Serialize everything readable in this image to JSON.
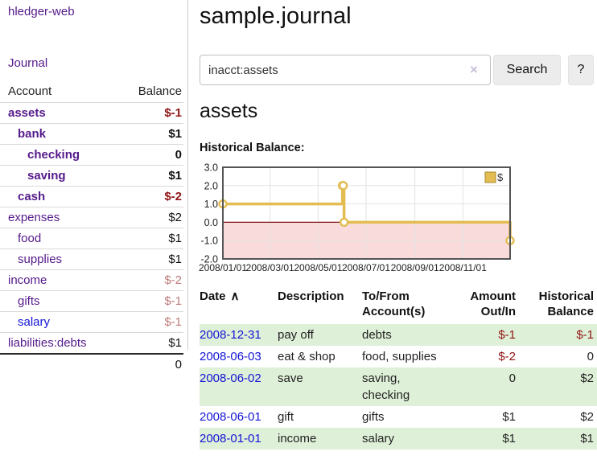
{
  "app": {
    "brand": "hledger-web",
    "nav": {
      "journal": "Journal"
    }
  },
  "sidebar": {
    "columns": {
      "account": "Account",
      "balance": "Balance"
    },
    "accounts": [
      {
        "name": "assets",
        "indent": 1,
        "bold": true,
        "balance": "$-1",
        "balance_tone": "negative-strong",
        "link_state": "visited"
      },
      {
        "name": "bank",
        "indent": 2,
        "bold": true,
        "balance": "$1",
        "balance_tone": "normal",
        "link_state": "visited"
      },
      {
        "name": "checking",
        "indent": 3,
        "bold": true,
        "balance": "0",
        "balance_tone": "normal",
        "link_state": "visited"
      },
      {
        "name": "saving",
        "indent": 3,
        "bold": true,
        "balance": "$1",
        "balance_tone": "normal",
        "link_state": "visited"
      },
      {
        "name": "cash",
        "indent": 2,
        "bold": true,
        "balance": "$-2",
        "balance_tone": "negative-strong",
        "link_state": "visited"
      },
      {
        "name": "expenses",
        "indent": 1,
        "bold": false,
        "balance": "$2",
        "balance_tone": "normal",
        "link_state": "visited"
      },
      {
        "name": "food",
        "indent": 2,
        "bold": false,
        "balance": "$1",
        "balance_tone": "normal",
        "link_state": "visited"
      },
      {
        "name": "supplies",
        "indent": 2,
        "bold": false,
        "balance": "$1",
        "balance_tone": "normal",
        "link_state": "visited"
      },
      {
        "name": "income",
        "indent": 1,
        "bold": false,
        "balance": "$-2",
        "balance_tone": "negative-muted",
        "link_state": "visited"
      },
      {
        "name": "gifts",
        "indent": 2,
        "bold": false,
        "balance": "$-1",
        "balance_tone": "negative-muted",
        "link_state": "visited"
      },
      {
        "name": "salary",
        "indent": 2,
        "bold": false,
        "balance": "$-1",
        "balance_tone": "negative-muted",
        "link_state": "unvisited"
      },
      {
        "name": "liabilities:debts",
        "indent": 1,
        "bold": false,
        "balance": "$1",
        "balance_tone": "normal",
        "link_state": "visited"
      }
    ],
    "total": "0"
  },
  "page": {
    "title": "sample.journal"
  },
  "search": {
    "value": "inacct:assets",
    "clear_icon": "×",
    "button_label": "Search",
    "help_label": "?"
  },
  "account_view": {
    "heading": "assets",
    "chart_title": "Historical Balance:"
  },
  "chart_data": {
    "type": "line",
    "style": "step-after",
    "title": "Historical Balance",
    "legend": [
      {
        "label": "$",
        "position": "top-right"
      }
    ],
    "x_range": [
      "2008-01-01",
      "2008-12-31"
    ],
    "ylim": [
      -2.0,
      3.0
    ],
    "yticks": [
      "3.0",
      "2.0",
      "1.0",
      "0.0",
      "-1.0",
      "-2.0"
    ],
    "xticks": [
      {
        "label": "2008/01/01",
        "date": "2008-01-01"
      },
      {
        "label": "2008/03/01",
        "date": "2008-03-01"
      },
      {
        "label": "2008/05/01",
        "date": "2008-05-01"
      },
      {
        "label": "2008/07/01",
        "date": "2008-07-01"
      },
      {
        "label": "2008/09/01",
        "date": "2008-09-01"
      },
      {
        "label": "2008/11/01",
        "date": "2008-11-01"
      }
    ],
    "series": [
      {
        "name": "$",
        "points": [
          {
            "date": "2008-01-01",
            "value": 1
          },
          {
            "date": "2008-06-01",
            "value": 2
          },
          {
            "date": "2008-06-02",
            "value": 2
          },
          {
            "date": "2008-06-03",
            "value": 0
          },
          {
            "date": "2008-12-31",
            "value": -1
          }
        ]
      }
    ],
    "grid": true,
    "negative_region_shaded": true
  },
  "register": {
    "columns": [
      "Date",
      "Description",
      "To/From\nAccount(s)",
      "Amount\nOut/In",
      "Historical\nBalance"
    ],
    "sort_indicator": "∧",
    "rows": [
      {
        "date": "2008-12-31",
        "description": "pay off",
        "accounts": [
          "debts"
        ],
        "amount": "$-1",
        "amount_negative": true,
        "balance": "$-1",
        "balance_negative": true
      },
      {
        "date": "2008-06-03",
        "description": "eat & shop",
        "accounts": [
          "food, supplies"
        ],
        "amount": "$-2",
        "amount_negative": true,
        "balance": "0",
        "balance_negative": false
      },
      {
        "date": "2008-06-02",
        "description": "save",
        "accounts": [
          "saving,",
          "checking"
        ],
        "amount": "0",
        "amount_negative": false,
        "balance": "$2",
        "balance_negative": false
      },
      {
        "date": "2008-06-01",
        "description": "gift",
        "accounts": [
          "gifts"
        ],
        "amount": "$1",
        "amount_negative": false,
        "balance": "$2",
        "balance_negative": false
      },
      {
        "date": "2008-01-01",
        "description": "income",
        "accounts": [
          "salary"
        ],
        "amount": "$1",
        "amount_negative": false,
        "balance": "$1",
        "balance_negative": false
      }
    ]
  },
  "colors": {
    "link_unvisited": "#1414d6",
    "link_visited": "#551a8b",
    "negative_strong": "#8f1414",
    "negative_muted": "#bd7b7b",
    "row_stripe_green": "#dff0d8",
    "chart_line": "#e3bd52",
    "chart_negative_bg": "#f9dbdb",
    "chart_zero_line": "#7d1010",
    "chart_border": "#555555",
    "chart_grid": "#e2e2e2"
  }
}
